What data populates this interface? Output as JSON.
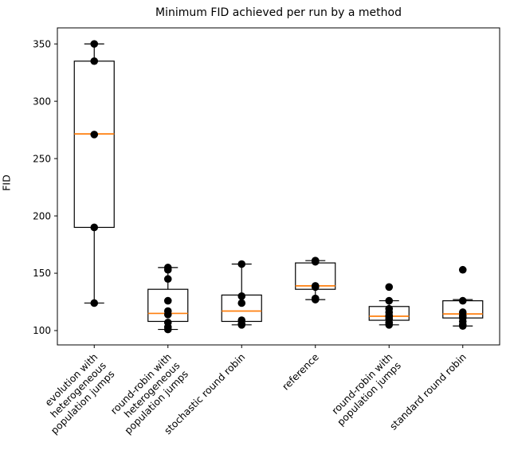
{
  "chart_data": {
    "type": "boxplot",
    "title": "Minimum FID achieved per run by a method",
    "ylabel": "FID",
    "xlabel": "",
    "ylim": [
      87.5,
      364
    ],
    "yticks": [
      100,
      150,
      200,
      250,
      300,
      350
    ],
    "grid": false,
    "legend": "none",
    "colors": {
      "box": "#000000",
      "median": "#ff7f0e",
      "point": "#000000",
      "spine": "#000000",
      "background": "#ffffff"
    },
    "methods": [
      {
        "label": "evolution with heterogeneous population jumps",
        "label_lines": [
          "evolution with",
          "heterogeneous",
          "population jumps"
        ],
        "stats": {
          "whislo": 124,
          "q1": 190,
          "med": 271.5,
          "q3": 335,
          "whishi": 350
        },
        "points": [
          350,
          335,
          271,
          190,
          124
        ]
      },
      {
        "label": "round-robin with heterogeneous population jumps",
        "label_lines": [
          "round-robin with",
          "heterogeneous",
          "population jumps"
        ],
        "stats": {
          "whislo": 101,
          "q1": 108,
          "med": 115,
          "q3": 136,
          "whishi": 155
        },
        "points": [
          155,
          153,
          145,
          126,
          117,
          114,
          107,
          103,
          101
        ]
      },
      {
        "label": "stochastic round robin",
        "label_lines": [
          "stochastic round robin"
        ],
        "stats": {
          "whislo": 105,
          "q1": 108,
          "med": 117,
          "q3": 131,
          "whishi": 158
        },
        "points": [
          158,
          130,
          124,
          109,
          106,
          105
        ]
      },
      {
        "label": "reference",
        "label_lines": [
          "reference"
        ],
        "stats": {
          "whislo": 127,
          "q1": 136,
          "med": 139,
          "q3": 159,
          "whishi": 161
        },
        "points": [
          161,
          160,
          139,
          138,
          128,
          127
        ]
      },
      {
        "label": "round-robin with population jumps",
        "label_lines": [
          "round-robin with",
          "population jumps"
        ],
        "stats": {
          "whislo": 105,
          "q1": 109,
          "med": 112.5,
          "q3": 121,
          "whishi": 126
        },
        "points": [
          138,
          126,
          119,
          116,
          113,
          112,
          110,
          107,
          105
        ]
      },
      {
        "label": "standard round robin",
        "label_lines": [
          "standard round robin"
        ],
        "stats": {
          "whislo": 104,
          "q1": 111,
          "med": 114.5,
          "q3": 126,
          "whishi": 127
        },
        "points": [
          153,
          126,
          116,
          113,
          111,
          108,
          105,
          104
        ]
      }
    ]
  }
}
